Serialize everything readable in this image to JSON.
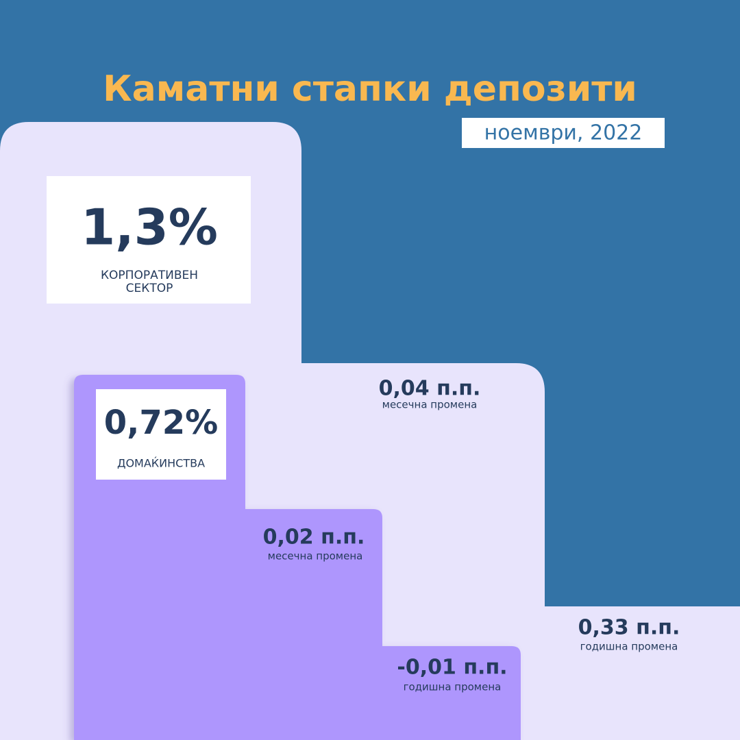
{
  "header": {
    "title": "Каматни стапки депозити",
    "subtitle": "ноември, 2022"
  },
  "corporate": {
    "rate": "1,3%",
    "label_lines": [
      "КОРПОРАТИВЕН",
      "СЕКТОР"
    ],
    "monthly": {
      "value": "0,04 п.п.",
      "label": "месечна промена"
    },
    "yearly": {
      "value": "0,33 п.п.",
      "label": "годишна промена"
    }
  },
  "households": {
    "rate": "0,72%",
    "label": "ДОМАЌИНСТВА",
    "monthly": {
      "value": "0,02 п.п.",
      "label": "месечна промена"
    },
    "yearly": {
      "value": "-0,01 п.п.",
      "label": "годишна промена"
    }
  }
}
